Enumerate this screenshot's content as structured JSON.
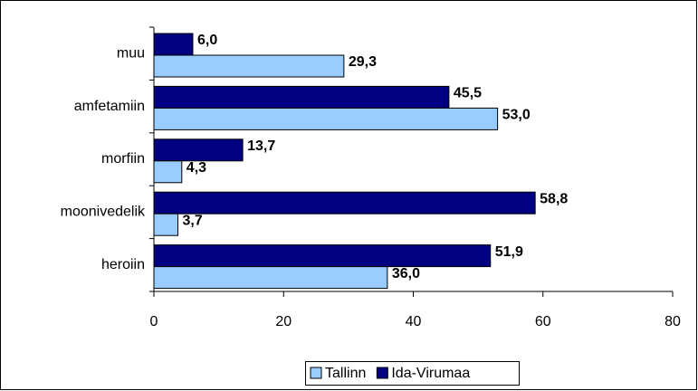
{
  "chart_data": {
    "type": "hbar",
    "categories": [
      "muu",
      "amfetamiin",
      "morfiin",
      "moonivedelik",
      "heroiin"
    ],
    "series": [
      {
        "name": "Tallinn",
        "color": "#99ccff",
        "values": [
          29.3,
          53.0,
          4.3,
          3.7,
          36.0
        ],
        "value_labels": [
          "29,3",
          "53,0",
          "4,3",
          "3,7",
          "36,0"
        ]
      },
      {
        "name": "Ida-Virumaa",
        "color": "#000080",
        "values": [
          6.0,
          45.5,
          13.7,
          58.8,
          51.9
        ],
        "value_labels": [
          "6,0",
          "45,5",
          "13,7",
          "58,8",
          "51,9"
        ]
      }
    ],
    "xlim": [
      0,
      80
    ],
    "xticks": [
      0,
      20,
      40,
      60,
      80
    ],
    "grid": false,
    "legend": "bottom"
  }
}
